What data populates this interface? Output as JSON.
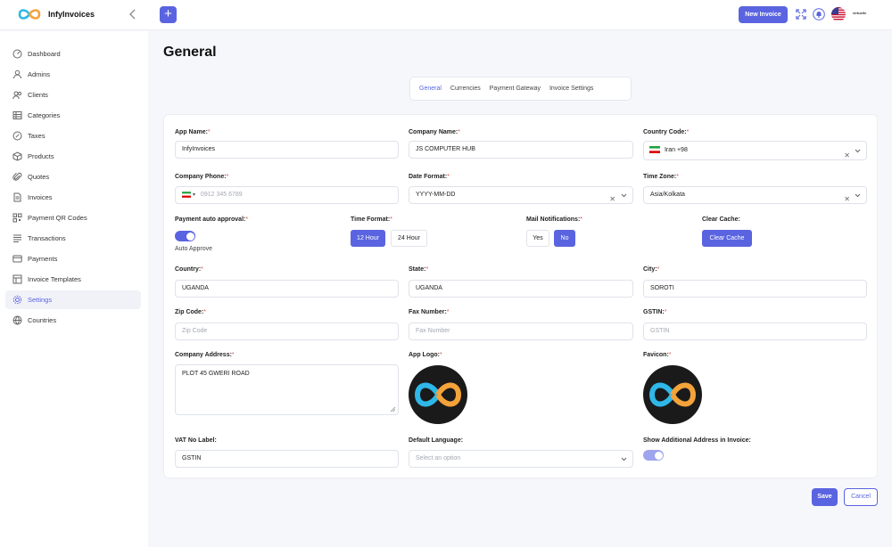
{
  "app": {
    "name": "InfyInvoices"
  },
  "header": {
    "new_invoice": "New Invoice",
    "plus": "+",
    "avatar_text": "virtuelle"
  },
  "sidebar": {
    "items": [
      {
        "label": "Dashboard",
        "icon": "dashboard-icon"
      },
      {
        "label": "Admins",
        "icon": "user-icon"
      },
      {
        "label": "Clients",
        "icon": "users-icon"
      },
      {
        "label": "Categories",
        "icon": "list-icon"
      },
      {
        "label": "Taxes",
        "icon": "tax-icon"
      },
      {
        "label": "Products",
        "icon": "box-icon"
      },
      {
        "label": "Quotes",
        "icon": "paperclip-icon"
      },
      {
        "label": "Invoices",
        "icon": "file-icon"
      },
      {
        "label": "Payment QR Codes",
        "icon": "qr-icon"
      },
      {
        "label": "Transactions",
        "icon": "transactions-icon"
      },
      {
        "label": "Payments",
        "icon": "card-icon"
      },
      {
        "label": "Invoice Templates",
        "icon": "template-icon"
      },
      {
        "label": "Settings",
        "icon": "gear-icon",
        "active": true
      },
      {
        "label": "Countries",
        "icon": "globe-icon"
      }
    ]
  },
  "page": {
    "title": "General"
  },
  "tabs": [
    "General",
    "Currencies",
    "Payment Gateway",
    "Invoice Settings"
  ],
  "form": {
    "app_name": {
      "label": "App Name:",
      "value": "InfyInvoices"
    },
    "company_name": {
      "label": "Company Name:",
      "value": "JS COMPUTER HUB"
    },
    "country_code": {
      "label": "Country Code:",
      "value": "Iran +98"
    },
    "company_phone": {
      "label": "Company Phone:",
      "placeholder": "0912 345 6789"
    },
    "date_format": {
      "label": "Date Format:",
      "value": "YYYY-MM-DD"
    },
    "time_zone": {
      "label": "Time Zone:",
      "value": "Asia/Kolkata"
    },
    "payment_auto_approval": {
      "label": "Payment auto approval:",
      "sub": "Auto Approve",
      "enabled": true
    },
    "time_format": {
      "label": "Time Format:",
      "options": [
        "12 Hour",
        "24 Hour"
      ],
      "selected": "12 Hour"
    },
    "mail_notifications": {
      "label": "Mail Notifications:",
      "options": [
        "Yes",
        "No"
      ],
      "selected": "No"
    },
    "clear_cache": {
      "label": "Clear Cache:",
      "button": "Clear Cache"
    },
    "country": {
      "label": "Country:",
      "value": "UGANDA"
    },
    "state": {
      "label": "State:",
      "value": "UGANDA"
    },
    "city": {
      "label": "City:",
      "value": "SOROTI"
    },
    "zip_code": {
      "label": "Zip Code:",
      "placeholder": "Zip Code"
    },
    "fax_number": {
      "label": "Fax Number:",
      "placeholder": "Fax Number"
    },
    "gstin": {
      "label": "GSTIN:",
      "placeholder": "GSTIN"
    },
    "company_address": {
      "label": "Company Address:",
      "value": "PLOT 45 GWERI ROAD"
    },
    "app_logo": {
      "label": "App Logo:"
    },
    "favicon": {
      "label": "Favicon:"
    },
    "vat_no_label": {
      "label": "VAT No Label:",
      "value": "GSTIN"
    },
    "default_language": {
      "label": "Default Language:",
      "placeholder": "Select an option"
    },
    "show_additional_address": {
      "label": "Show Additional Address in Invoice:",
      "enabled": true
    }
  },
  "actions": {
    "save": "Save",
    "cancel": "Cancel"
  },
  "colors": {
    "accent": "#5a64e0",
    "required": "#e05252"
  }
}
